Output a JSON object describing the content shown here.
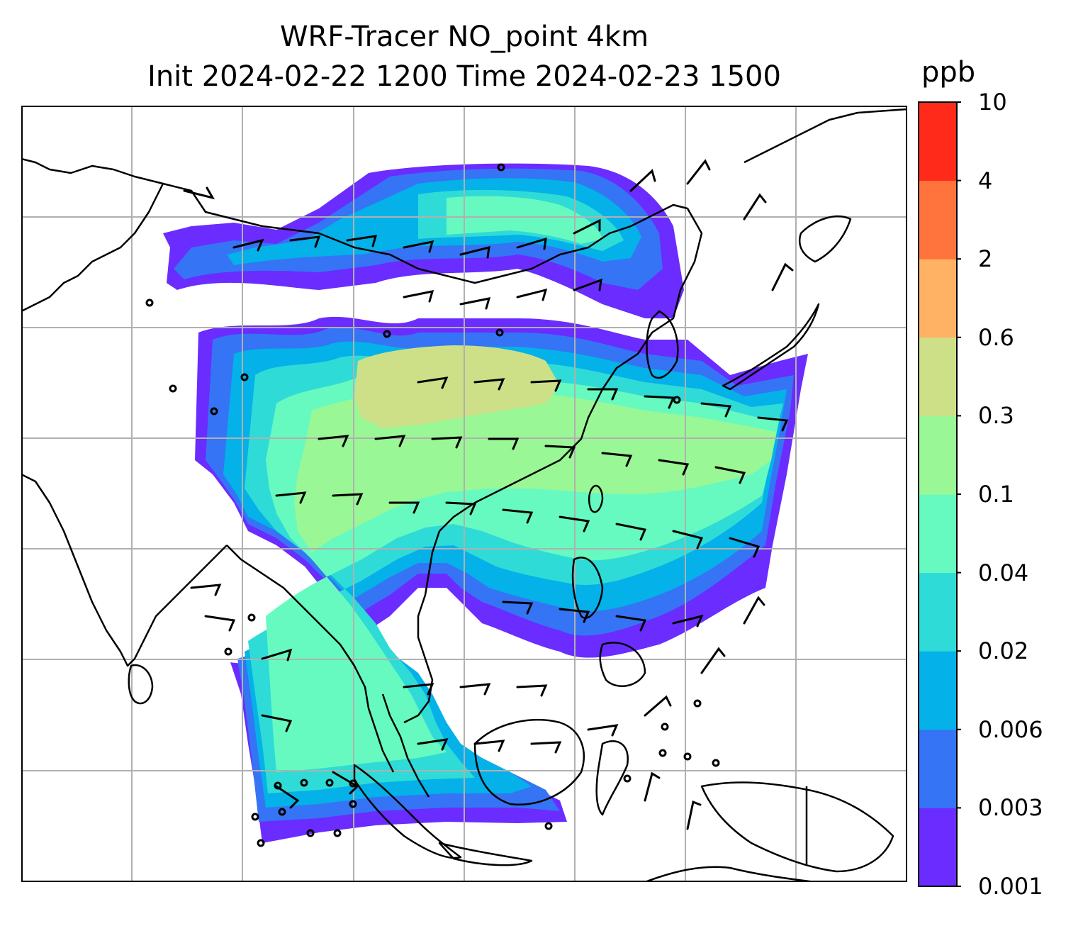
{
  "title": {
    "line1": "WRF-Tracer NO_point 4km",
    "line2": "Init 2024-02-22 1200 Time 2024-02-23 1500"
  },
  "colorbar": {
    "unit": "ppb",
    "ticks": [
      "0.001",
      "0.003",
      "0.006",
      "0.02",
      "0.04",
      "0.1",
      "0.3",
      "0.6",
      "2",
      "4",
      "10"
    ],
    "colors": [
      "#6a2cff",
      "#3574f5",
      "#04b1e8",
      "#2fdbd6",
      "#67fac0",
      "#9af795",
      "#cee087",
      "#ffb264",
      "#ff733d",
      "#ff2a1a"
    ]
  },
  "map": {
    "region": "Asia",
    "gridlines": true,
    "coastline_color": "#000000",
    "gridline_color": "#b0b0b0",
    "layers": [
      "tracer-concentration",
      "wind-barbs",
      "coastlines"
    ]
  }
}
